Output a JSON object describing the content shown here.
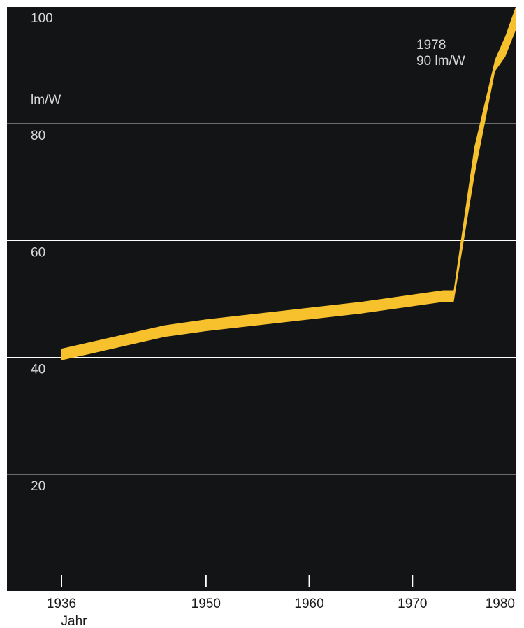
{
  "colors": {
    "background": "#131416",
    "band": "#f6c12c",
    "grid": "#ffffff",
    "text_dark": "#d8d8d8",
    "text_light": "#1a1a1a"
  },
  "chart_data": {
    "type": "area",
    "ylabel": "lm/W",
    "xlabel": "Jahr",
    "ylim": [
      0,
      100
    ],
    "xlim": [
      1936,
      1980
    ],
    "grid": true,
    "y_ticks": [
      20,
      40,
      60,
      80,
      100
    ],
    "x_ticks": [
      {
        "value": 1936,
        "label": "1936"
      },
      {
        "value": 1950,
        "label": "1950"
      },
      {
        "value": 1960,
        "label": "1960"
      },
      {
        "value": 1970,
        "label": "1970"
      },
      {
        "value": 1980,
        "label": "1980"
      }
    ],
    "series": [
      {
        "x": [
          1936,
          1946,
          1950,
          1955,
          1965,
          1973,
          1974,
          1976,
          1978,
          1979,
          1980
        ],
        "lower": [
          39.5,
          43.5,
          44.5,
          45.5,
          47.5,
          49.5,
          49.5,
          71,
          89,
          91.5,
          96
        ],
        "upper": [
          41.5,
          45.5,
          46.5,
          47.5,
          49.5,
          51.5,
          51.5,
          76,
          91,
          95,
          100
        ]
      }
    ],
    "annotations": [
      {
        "line1": "1978",
        "line2": "90 lm/W",
        "x": 1978,
        "y": 90
      }
    ]
  }
}
